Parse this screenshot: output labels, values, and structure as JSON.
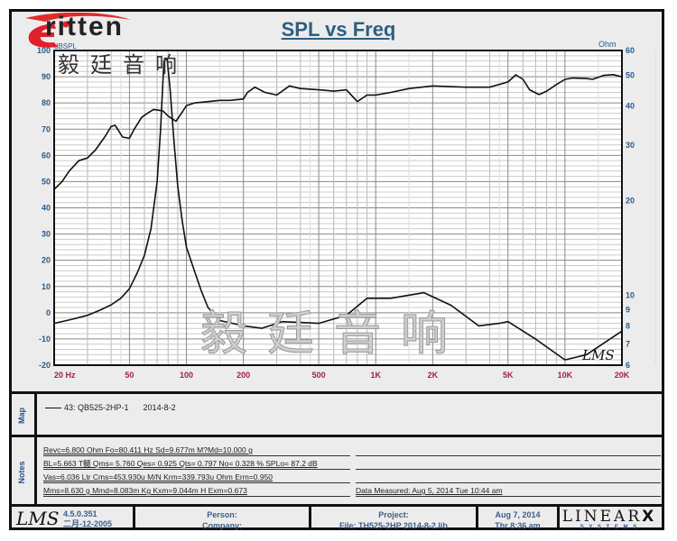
{
  "logo": {
    "brand": "ritten",
    "chinese": "毅廷音响",
    "watermark": "毅廷音响"
  },
  "title": "SPL vs Freq",
  "colors": {
    "title": "#2e5f80",
    "axis_left": "#2a5a8a",
    "axis_x": "#a0204a",
    "curve": "#111111",
    "logo_red": "#e0202a"
  },
  "chart_data": {
    "type": "line",
    "title": "SPL vs Freq",
    "x_scale": "log",
    "xlim": [
      20,
      20000
    ],
    "x_ticks": [
      {
        "v": 20,
        "label": "20  Hz"
      },
      {
        "v": 50,
        "label": "50"
      },
      {
        "v": 100,
        "label": "100"
      },
      {
        "v": 200,
        "label": "200"
      },
      {
        "v": 500,
        "label": "500"
      },
      {
        "v": 1000,
        "label": "1K"
      },
      {
        "v": 2000,
        "label": "2K"
      },
      {
        "v": 5000,
        "label": "5K"
      },
      {
        "v": 10000,
        "label": "10K"
      },
      {
        "v": 20000,
        "label": "20K"
      }
    ],
    "ylabel_left": "dBSPL",
    "ylim_left": [
      -20,
      100
    ],
    "y_ticks_left": [
      -20,
      -10,
      0,
      10,
      20,
      30,
      40,
      50,
      60,
      70,
      80,
      90,
      100
    ],
    "ylabel_right": "Ohm",
    "y_scale_right": "log",
    "ylim_right": [
      6,
      60
    ],
    "y_ticks_right": [
      6,
      7,
      8,
      9,
      10,
      20,
      30,
      40,
      50,
      60
    ],
    "grid": true,
    "series": [
      {
        "axis": "left",
        "unit": "dBSPL",
        "x": [
          20,
          22,
          24,
          27,
          30,
          33,
          37,
          40,
          42,
          46,
          50,
          53,
          58,
          62,
          67,
          75,
          80,
          88,
          93,
          100,
          110,
          130,
          150,
          170,
          200,
          210,
          230,
          260,
          300,
          350,
          400,
          500,
          600,
          700,
          800,
          900,
          1000,
          1200,
          1500,
          2000,
          3000,
          4000,
          5000,
          5500,
          6000,
          6500,
          7300,
          8000,
          9000,
          10000,
          11000,
          13000,
          14000,
          16000,
          18000,
          20000
        ],
        "y": [
          47,
          50,
          54,
          58,
          59,
          62,
          67,
          71,
          71.5,
          67,
          66.5,
          70,
          74.5,
          76,
          77.5,
          77,
          75,
          73,
          75.5,
          79,
          80,
          80.5,
          81,
          81,
          81.5,
          84,
          86,
          84,
          83,
          86.5,
          85.5,
          85,
          84.5,
          85,
          80.5,
          83,
          83,
          84,
          85.5,
          86.5,
          86,
          86,
          88,
          90.7,
          89,
          85,
          83.2,
          84.5,
          87,
          89,
          89.5,
          89.3,
          89,
          90.5,
          90.8,
          90
        ]
      },
      {
        "axis": "right",
        "unit": "Ohm",
        "x": [
          20,
          25,
          30,
          35,
          40,
          45,
          50,
          55,
          60,
          65,
          70,
          73,
          76,
          79,
          82,
          86,
          90,
          95,
          100,
          110,
          120,
          130,
          150,
          200,
          250,
          320,
          500,
          700,
          900,
          1200,
          1800,
          2500,
          3500,
          4500,
          5000,
          7000,
          10000,
          13000,
          20000
        ],
        "y": [
          8.15,
          8.4,
          8.64,
          8.98,
          9.33,
          9.79,
          10.5,
          11.8,
          13.4,
          16.3,
          23,
          33.7,
          55.6,
          56.6,
          45,
          30.7,
          22.1,
          17.2,
          14.2,
          12,
          10.3,
          9.15,
          8.32,
          8.0,
          7.86,
          8.25,
          8.15,
          8.64,
          9.79,
          9.79,
          10.2,
          9.3,
          8.0,
          8.15,
          8.25,
          7.26,
          6.24,
          6.48,
          7.7
        ]
      }
    ]
  },
  "map": {
    "label": "Map",
    "entry": "43: QB525-2HP-1",
    "date": "2014-8-2"
  },
  "notes": {
    "label": "Notes",
    "lines": [
      "Revc=6.800 Ohm  Fo=80.411 Hz  Sd=9.677m M?Md=10.000 g",
      "BL=5.663 T髓  Qms= 5.760  Qes= 0.925  Qts= 0.797  No= 0.328 %  SPLo= 87.2 dB",
      "Vas=6.036 Ltr  Cms=453.930u M/N  Krm=339.793u Ohm  Erm=0.950",
      "Mms=8.630 g  Mmd=8.083m Kg  Kxm=9.044m H  Exm=0.673"
    ],
    "right_lines": [
      "",
      "",
      "",
      "Data Measured: Aug  5, 2014  Tue 10:44 am"
    ]
  },
  "footer": {
    "lms_logo": "LMS",
    "version": "4.5.0.351",
    "build_date": "二月-12-2005",
    "person": "Person:",
    "company": "Company:",
    "project": "Project:",
    "file": "File: TH525-2HP   2014-8-2.lib",
    "date": "Aug  7, 2014",
    "time": "Thr  8:36 am",
    "linearx": "LINEAR",
    "linearx_x": "X",
    "systems": "S  Y  S  T  E  M  S"
  }
}
